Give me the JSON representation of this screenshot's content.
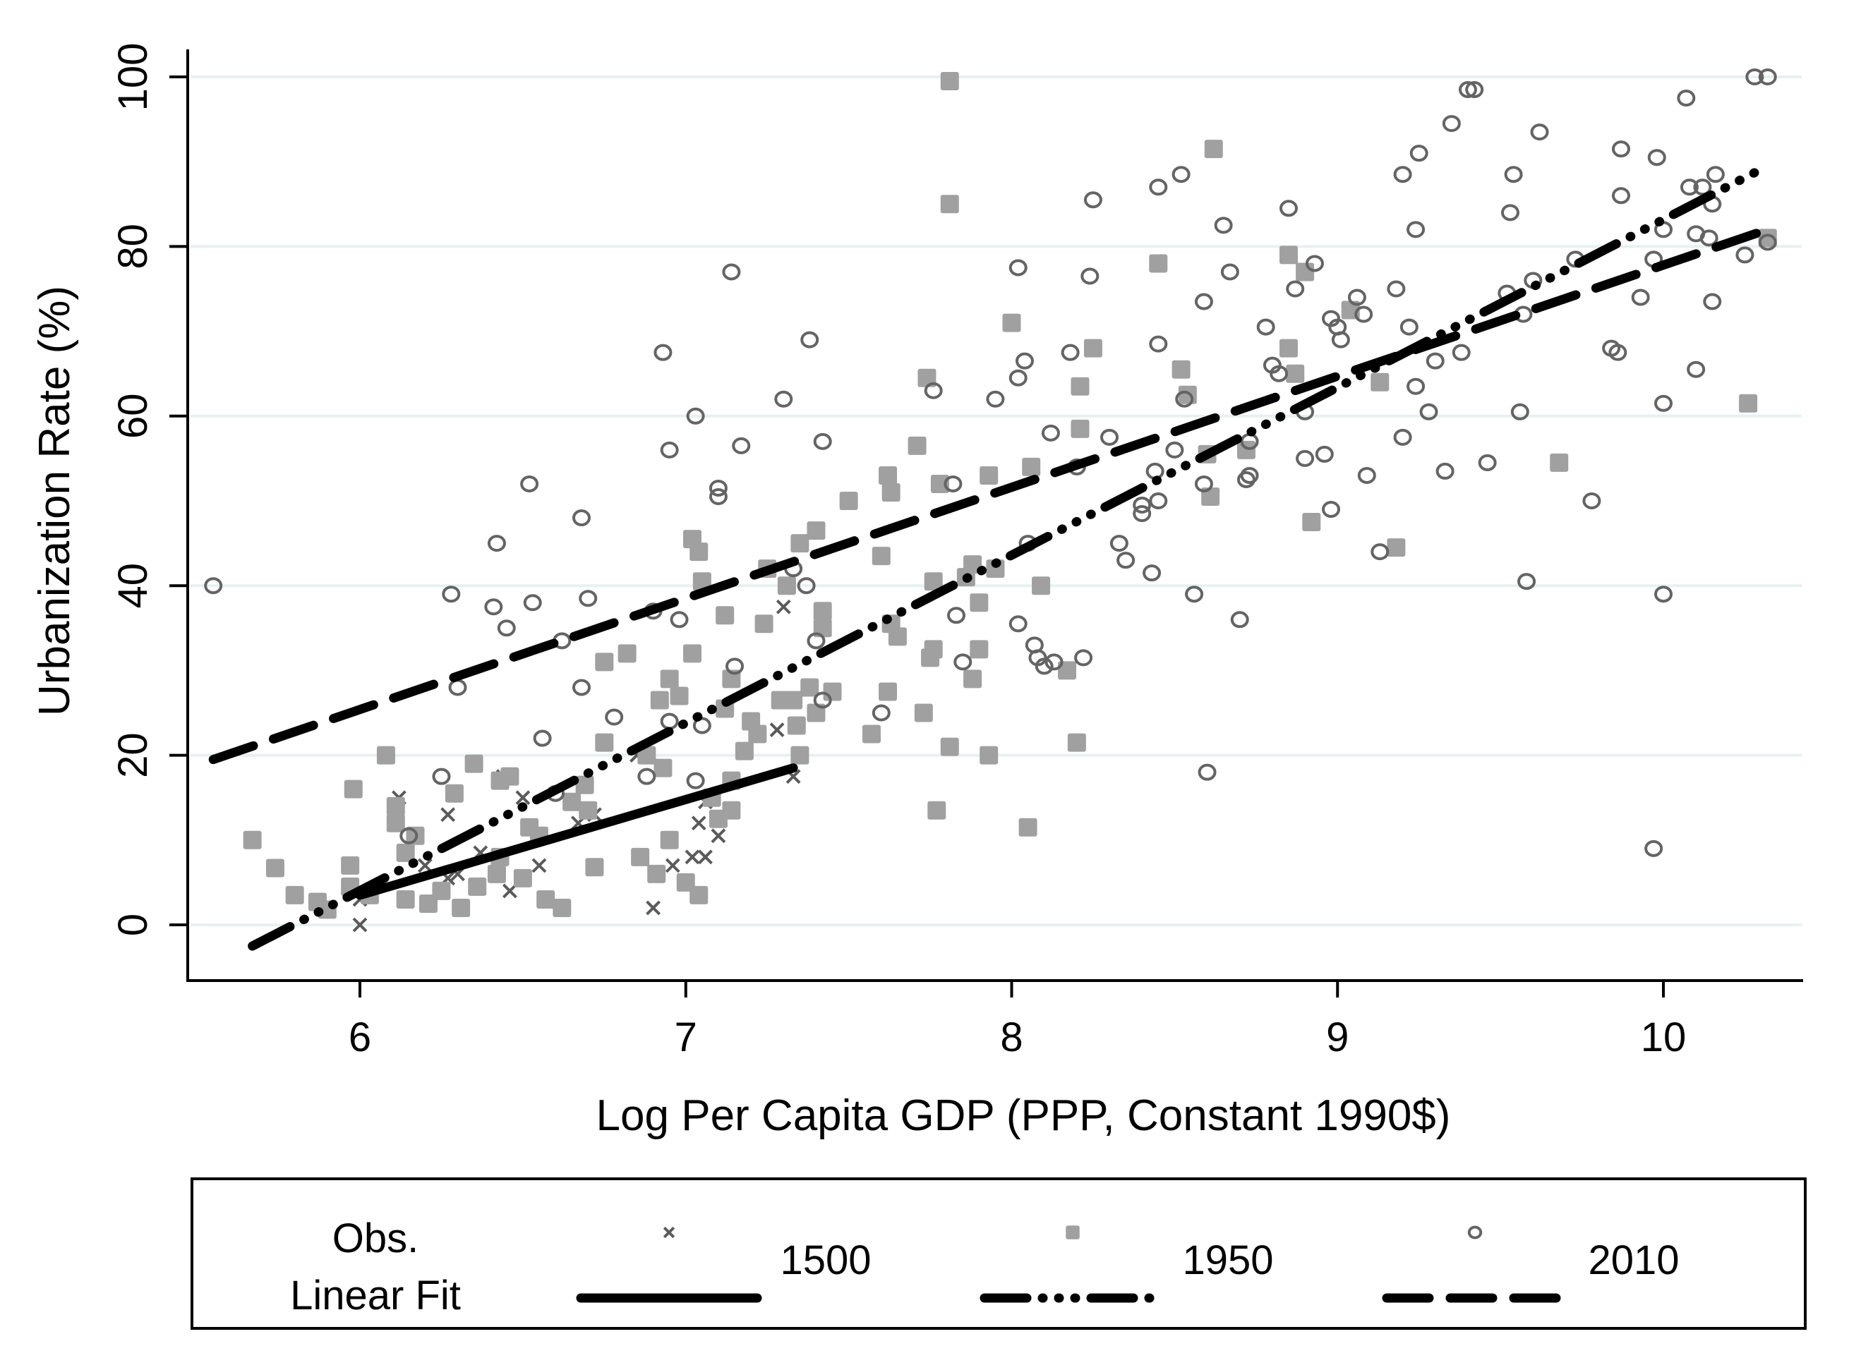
{
  "chart_data": {
    "type": "scatter",
    "title": "",
    "xlabel": "Log Per Capita GDP (PPP, Constant 1990$)",
    "ylabel": "Urbanization Rate (%)",
    "xlim": [
      5.47,
      10.42
    ],
    "ylim": [
      -6,
      103
    ],
    "xticks": [
      6,
      7,
      8,
      9,
      10
    ],
    "yticks": [
      0,
      20,
      40,
      60,
      80,
      100
    ],
    "grid": true,
    "legend": {
      "placement": "bottom",
      "row_labels": [
        "Obs.",
        "Linear Fit"
      ],
      "entries": [
        "1500",
        "1950",
        "2010"
      ]
    },
    "colors": {
      "marker_1500": "#5a5a5a",
      "marker_1950": "#a0a0a0",
      "marker_2010": "#646464",
      "fit": "#000000",
      "grid": "#e8f0f0"
    },
    "series": [
      {
        "name": "1500",
        "marker": "x",
        "points": [
          [
            6.0,
            0.0
          ],
          [
            6.0,
            3.0
          ],
          [
            6.12,
            15.0
          ],
          [
            6.27,
            13.0
          ],
          [
            6.27,
            5.5
          ],
          [
            6.37,
            8.5
          ],
          [
            6.44,
            17.5
          ],
          [
            6.46,
            4.0
          ],
          [
            6.55,
            7.0
          ],
          [
            6.2,
            7.0
          ],
          [
            6.3,
            6.0
          ],
          [
            6.67,
            12.0
          ],
          [
            6.72,
            13.0
          ],
          [
            6.9,
            2.0
          ],
          [
            6.96,
            7.0
          ],
          [
            7.02,
            8.0
          ],
          [
            7.04,
            12.0
          ],
          [
            7.06,
            8.0
          ],
          [
            7.1,
            10.5
          ],
          [
            7.06,
            14.5
          ],
          [
            7.28,
            23.0
          ],
          [
            7.3,
            37.5
          ],
          [
            7.33,
            17.5
          ],
          [
            6.5,
            15.0
          ],
          [
            6.85,
            20.0
          ]
        ]
      },
      {
        "name": "1950",
        "marker": "square",
        "points": [
          [
            5.67,
            10.0
          ],
          [
            5.74,
            6.7
          ],
          [
            5.8,
            3.5
          ],
          [
            5.87,
            2.7
          ],
          [
            5.9,
            1.8
          ],
          [
            5.97,
            7.0
          ],
          [
            5.97,
            4.5
          ],
          [
            5.98,
            16.0
          ],
          [
            6.03,
            3.5
          ],
          [
            6.08,
            20.0
          ],
          [
            6.11,
            12.0
          ],
          [
            6.11,
            14.0
          ],
          [
            6.14,
            8.5
          ],
          [
            6.14,
            3.0
          ],
          [
            6.17,
            10.5
          ],
          [
            6.21,
            2.5
          ],
          [
            6.25,
            4.0
          ],
          [
            6.29,
            15.5
          ],
          [
            6.31,
            2.0
          ],
          [
            6.35,
            19.0
          ],
          [
            6.36,
            4.5
          ],
          [
            6.42,
            6.0
          ],
          [
            6.43,
            8.0
          ],
          [
            6.43,
            17.0
          ],
          [
            6.46,
            17.5
          ],
          [
            6.5,
            5.5
          ],
          [
            6.52,
            11.5
          ],
          [
            6.55,
            10.5
          ],
          [
            6.57,
            3.0
          ],
          [
            6.62,
            2.0
          ],
          [
            6.65,
            14.5
          ],
          [
            6.69,
            16.5
          ],
          [
            6.7,
            13.5
          ],
          [
            6.72,
            6.8
          ],
          [
            6.75,
            21.5
          ],
          [
            6.75,
            31.0
          ],
          [
            6.82,
            32.0
          ],
          [
            6.86,
            8.0
          ],
          [
            6.88,
            20.0
          ],
          [
            6.91,
            6.0
          ],
          [
            6.92,
            26.5
          ],
          [
            6.93,
            18.5
          ],
          [
            6.95,
            29.0
          ],
          [
            6.95,
            10.0
          ],
          [
            6.98,
            27.0
          ],
          [
            7.0,
            5.0
          ],
          [
            7.02,
            32.0
          ],
          [
            7.02,
            45.5
          ],
          [
            7.04,
            44.0
          ],
          [
            7.04,
            3.5
          ],
          [
            7.05,
            40.5
          ],
          [
            7.08,
            15.0
          ],
          [
            7.1,
            12.5
          ],
          [
            7.12,
            25.5
          ],
          [
            7.12,
            36.5
          ],
          [
            7.14,
            29.0
          ],
          [
            7.14,
            17.0
          ],
          [
            7.14,
            13.5
          ],
          [
            7.18,
            20.5
          ],
          [
            7.2,
            24.0
          ],
          [
            7.22,
            22.5
          ],
          [
            7.24,
            35.5
          ],
          [
            7.25,
            42.0
          ],
          [
            7.29,
            26.5
          ],
          [
            7.31,
            40.0
          ],
          [
            7.33,
            26.5
          ],
          [
            7.34,
            23.5
          ],
          [
            7.35,
            45.0
          ],
          [
            7.35,
            20.0
          ],
          [
            7.38,
            28.0
          ],
          [
            7.4,
            46.5
          ],
          [
            7.4,
            25.0
          ],
          [
            7.42,
            37.0
          ],
          [
            7.42,
            35.0
          ],
          [
            7.45,
            27.5
          ],
          [
            7.5,
            50.0
          ],
          [
            7.57,
            22.5
          ],
          [
            7.6,
            43.5
          ],
          [
            7.62,
            27.5
          ],
          [
            7.62,
            53.0
          ],
          [
            7.63,
            51.0
          ],
          [
            7.63,
            35.5
          ],
          [
            7.65,
            34.0
          ],
          [
            7.71,
            56.5
          ],
          [
            7.73,
            25.0
          ],
          [
            7.74,
            64.5
          ],
          [
            7.75,
            31.5
          ],
          [
            7.76,
            40.5
          ],
          [
            7.76,
            32.5
          ],
          [
            7.77,
            13.5
          ],
          [
            7.78,
            52.0
          ],
          [
            7.81,
            21.0
          ],
          [
            7.81,
            99.5
          ],
          [
            7.81,
            85.0
          ],
          [
            7.86,
            41.0
          ],
          [
            7.88,
            42.5
          ],
          [
            7.88,
            29.0
          ],
          [
            7.9,
            32.5
          ],
          [
            7.9,
            38.0
          ],
          [
            7.93,
            53.0
          ],
          [
            7.93,
            20.0
          ],
          [
            7.95,
            42.0
          ],
          [
            8.0,
            71.0
          ],
          [
            8.05,
            11.5
          ],
          [
            8.06,
            54.0
          ],
          [
            8.09,
            40.0
          ],
          [
            8.17,
            30.0
          ],
          [
            8.2,
            21.5
          ],
          [
            8.21,
            63.5
          ],
          [
            8.21,
            58.5
          ],
          [
            8.25,
            68.0
          ],
          [
            8.45,
            78.0
          ],
          [
            8.52,
            65.5
          ],
          [
            8.54,
            62.5
          ],
          [
            8.6,
            55.5
          ],
          [
            8.61,
            50.5
          ],
          [
            8.62,
            91.5
          ],
          [
            8.72,
            56.0
          ],
          [
            8.85,
            79.0
          ],
          [
            8.85,
            68.0
          ],
          [
            8.87,
            65.0
          ],
          [
            8.9,
            77.0
          ],
          [
            8.92,
            47.5
          ],
          [
            9.04,
            72.5
          ],
          [
            9.13,
            64.0
          ],
          [
            9.18,
            44.5
          ],
          [
            9.68,
            54.5
          ],
          [
            10.26,
            61.5
          ],
          [
            10.32,
            81.0
          ]
        ]
      },
      {
        "name": "2010",
        "marker": "circle",
        "points": [
          [
            5.55,
            40.0
          ],
          [
            6.15,
            10.5
          ],
          [
            6.25,
            17.5
          ],
          [
            6.28,
            39.0
          ],
          [
            6.3,
            28.0
          ],
          [
            6.41,
            37.5
          ],
          [
            6.42,
            45.0
          ],
          [
            6.45,
            35.0
          ],
          [
            6.52,
            52.0
          ],
          [
            6.53,
            38.0
          ],
          [
            6.56,
            22.0
          ],
          [
            6.6,
            15.5
          ],
          [
            6.62,
            33.5
          ],
          [
            6.68,
            48.0
          ],
          [
            6.68,
            28.0
          ],
          [
            6.7,
            38.5
          ],
          [
            6.78,
            24.5
          ],
          [
            6.88,
            17.5
          ],
          [
            6.9,
            37.0
          ],
          [
            6.93,
            67.5
          ],
          [
            6.95,
            56.0
          ],
          [
            6.95,
            24.0
          ],
          [
            6.98,
            36.0
          ],
          [
            7.03,
            60.0
          ],
          [
            7.03,
            17.0
          ],
          [
            7.05,
            23.5
          ],
          [
            7.1,
            51.5
          ],
          [
            7.1,
            50.5
          ],
          [
            7.14,
            77.0
          ],
          [
            7.15,
            30.5
          ],
          [
            7.17,
            56.5
          ],
          [
            7.3,
            62.0
          ],
          [
            7.33,
            42.0
          ],
          [
            7.37,
            40.0
          ],
          [
            7.38,
            69.0
          ],
          [
            7.4,
            33.5
          ],
          [
            7.42,
            57.0
          ],
          [
            7.42,
            26.5
          ],
          [
            7.6,
            25.0
          ],
          [
            7.76,
            63.0
          ],
          [
            7.82,
            52.0
          ],
          [
            7.83,
            36.5
          ],
          [
            7.85,
            31.0
          ],
          [
            7.95,
            62.0
          ],
          [
            8.02,
            64.5
          ],
          [
            8.02,
            35.5
          ],
          [
            8.02,
            77.5
          ],
          [
            8.04,
            66.5
          ],
          [
            8.05,
            45.0
          ],
          [
            8.07,
            33.0
          ],
          [
            8.08,
            31.5
          ],
          [
            8.1,
            30.5
          ],
          [
            8.12,
            58.0
          ],
          [
            8.13,
            31.0
          ],
          [
            8.18,
            67.5
          ],
          [
            8.2,
            54.0
          ],
          [
            8.22,
            31.5
          ],
          [
            8.24,
            76.5
          ],
          [
            8.25,
            85.5
          ],
          [
            8.3,
            57.5
          ],
          [
            8.33,
            45.0
          ],
          [
            8.35,
            43.0
          ],
          [
            8.4,
            48.5
          ],
          [
            8.4,
            49.5
          ],
          [
            8.43,
            41.5
          ],
          [
            8.44,
            53.5
          ],
          [
            8.45,
            50.0
          ],
          [
            8.45,
            87.0
          ],
          [
            8.45,
            68.5
          ],
          [
            8.5,
            56.0
          ],
          [
            8.52,
            88.5
          ],
          [
            8.53,
            62.0
          ],
          [
            8.56,
            39.0
          ],
          [
            8.59,
            73.5
          ],
          [
            8.59,
            52.0
          ],
          [
            8.6,
            18.0
          ],
          [
            8.65,
            82.5
          ],
          [
            8.67,
            77.0
          ],
          [
            8.7,
            36.0
          ],
          [
            8.72,
            52.5
          ],
          [
            8.73,
            53.0
          ],
          [
            8.73,
            57.0
          ],
          [
            8.78,
            70.5
          ],
          [
            8.8,
            66.0
          ],
          [
            8.82,
            65.0
          ],
          [
            8.85,
            84.5
          ],
          [
            8.87,
            75.0
          ],
          [
            8.9,
            60.5
          ],
          [
            8.9,
            55.0
          ],
          [
            8.93,
            78.0
          ],
          [
            8.96,
            55.5
          ],
          [
            8.98,
            49.0
          ],
          [
            8.98,
            71.5
          ],
          [
            9.0,
            70.5
          ],
          [
            9.01,
            69.0
          ],
          [
            9.06,
            74.0
          ],
          [
            9.08,
            72.0
          ],
          [
            9.09,
            53.0
          ],
          [
            9.13,
            44.0
          ],
          [
            9.18,
            75.0
          ],
          [
            9.2,
            57.5
          ],
          [
            9.2,
            88.5
          ],
          [
            9.22,
            70.5
          ],
          [
            9.24,
            63.5
          ],
          [
            9.24,
            82.0
          ],
          [
            9.25,
            91.0
          ],
          [
            9.28,
            60.5
          ],
          [
            9.3,
            66.5
          ],
          [
            9.33,
            53.5
          ],
          [
            9.35,
            94.5
          ],
          [
            9.38,
            67.5
          ],
          [
            9.4,
            98.5
          ],
          [
            9.42,
            98.5
          ],
          [
            9.46,
            54.5
          ],
          [
            9.52,
            74.5
          ],
          [
            9.53,
            84.0
          ],
          [
            9.54,
            88.5
          ],
          [
            9.56,
            60.5
          ],
          [
            9.57,
            72.0
          ],
          [
            9.58,
            40.5
          ],
          [
            9.6,
            76.0
          ],
          [
            9.62,
            93.5
          ],
          [
            9.73,
            78.5
          ],
          [
            9.78,
            50.0
          ],
          [
            9.84,
            68.0
          ],
          [
            9.86,
            67.5
          ],
          [
            9.87,
            86.0
          ],
          [
            9.87,
            91.5
          ],
          [
            9.93,
            74.0
          ],
          [
            9.97,
            9.0
          ],
          [
            9.97,
            78.5
          ],
          [
            9.98,
            90.5
          ],
          [
            10.0,
            82.0
          ],
          [
            10.0,
            61.5
          ],
          [
            10.0,
            39.0
          ],
          [
            10.07,
            97.5
          ],
          [
            10.08,
            87.0
          ],
          [
            10.1,
            81.5
          ],
          [
            10.1,
            65.5
          ],
          [
            10.12,
            87.0
          ],
          [
            10.14,
            81.0
          ],
          [
            10.15,
            73.5
          ],
          [
            10.15,
            85.0
          ],
          [
            10.16,
            88.5
          ],
          [
            10.25,
            79.0
          ],
          [
            10.28,
            100.0
          ],
          [
            10.32,
            100.0
          ],
          [
            10.32,
            80.5
          ]
        ]
      }
    ],
    "fits": [
      {
        "name": "1500",
        "style": "solid",
        "x": [
          6.0,
          7.33
        ],
        "y": [
          3.5,
          18.5
        ]
      },
      {
        "name": "1950",
        "style": "dash-dot-dot",
        "x": [
          5.67,
          10.32
        ],
        "y": [
          -2.5,
          89.5
        ]
      },
      {
        "name": "2010",
        "style": "dashed",
        "x": [
          5.55,
          10.32
        ],
        "y": [
          19.5,
          82.0
        ]
      }
    ]
  }
}
